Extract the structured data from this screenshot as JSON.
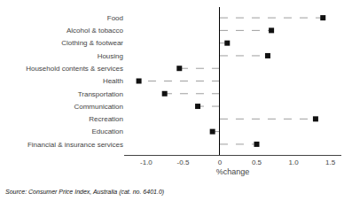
{
  "chart_data": {
    "type": "lollipop",
    "orientation": "horizontal",
    "categories": [
      "Food",
      "Alcohol & tobacco",
      "Clothing & footwear",
      "Housing",
      "Household contents & services",
      "Health",
      "Transportation",
      "Communication",
      "Recreation",
      "Education",
      "Financial & insurance services"
    ],
    "values": [
      1.4,
      0.7,
      0.1,
      0.65,
      -0.55,
      -1.1,
      -0.75,
      -0.3,
      1.3,
      -0.1,
      0.5
    ],
    "xlim": [
      -1.3,
      1.65
    ],
    "xticks": [
      {
        "value": -1.0,
        "label": "-1.0"
      },
      -0.5,
      0,
      0.5,
      {
        "value": 1.0,
        "label": "1.0"
      },
      1.5
    ],
    "xlabel": "%change",
    "color": "#111111",
    "marker": "square",
    "line_style": "dashed",
    "grid": false,
    "annotations": [
      "Source: Consumer Price Index, Australia (cat. no. 6401.0)"
    ]
  }
}
